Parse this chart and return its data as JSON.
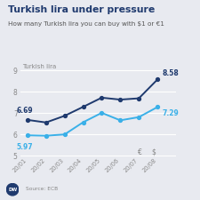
{
  "title": "Turkish lira under pressure",
  "subtitle": "How many Turkish lira you can buy with $1 or €1",
  "x_labels": [
    "20/01",
    "20/02",
    "20/03",
    "20/04",
    "20/05",
    "20/06",
    "20/07",
    "20/08"
  ],
  "euro_values": [
    6.69,
    6.57,
    6.88,
    7.3,
    7.73,
    7.64,
    7.7,
    8.58
  ],
  "dollar_values": [
    5.97,
    5.95,
    6.01,
    6.58,
    7.02,
    6.67,
    6.82,
    7.29
  ],
  "euro_color": "#1f3a6e",
  "dollar_color": "#3ab0e8",
  "ylabel": "Turkish lira",
  "ylim": [
    5.0,
    9.4
  ],
  "yticks": [
    5,
    6,
    7,
    8,
    9
  ],
  "start_label_euro": "6.69",
  "end_label_euro": "8.58",
  "start_label_dollar": "5.97",
  "end_label_dollar": "7.29",
  "background_color": "#e8eaf0",
  "source_text": "Source: ECB",
  "title_color": "#1f3a6e",
  "subtitle_color": "#555555",
  "grid_color": "#ffffff",
  "tick_color": "#888888"
}
